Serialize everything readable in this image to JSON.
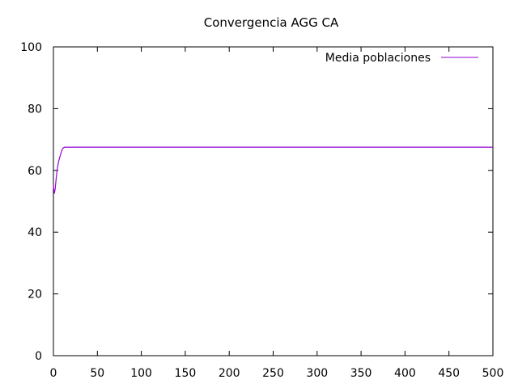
{
  "chart_data": {
    "type": "line",
    "title": "Convergencia AGG CA",
    "xlabel": "",
    "ylabel": "",
    "xlim": [
      0,
      500
    ],
    "ylim": [
      0,
      100
    ],
    "x_ticks": [
      0,
      50,
      100,
      150,
      200,
      250,
      300,
      350,
      400,
      450,
      500
    ],
    "y_ticks": [
      0,
      20,
      40,
      60,
      80,
      100
    ],
    "grid": false,
    "legend_position": "top-right",
    "series": [
      {
        "name": "Media poblaciones",
        "color": "#9400d3",
        "x": [
          0,
          1,
          2,
          3,
          4,
          5,
          6,
          7,
          8,
          9,
          10,
          11,
          12,
          13,
          14,
          20,
          50,
          100,
          200,
          300,
          400,
          500
        ],
        "y": [
          55,
          52.5,
          54,
          57,
          59.5,
          61.5,
          63,
          64,
          65,
          66,
          66.8,
          67.2,
          67.4,
          67.5,
          67.5,
          67.5,
          67.5,
          67.5,
          67.5,
          67.5,
          67.5,
          67.5
        ]
      }
    ]
  }
}
